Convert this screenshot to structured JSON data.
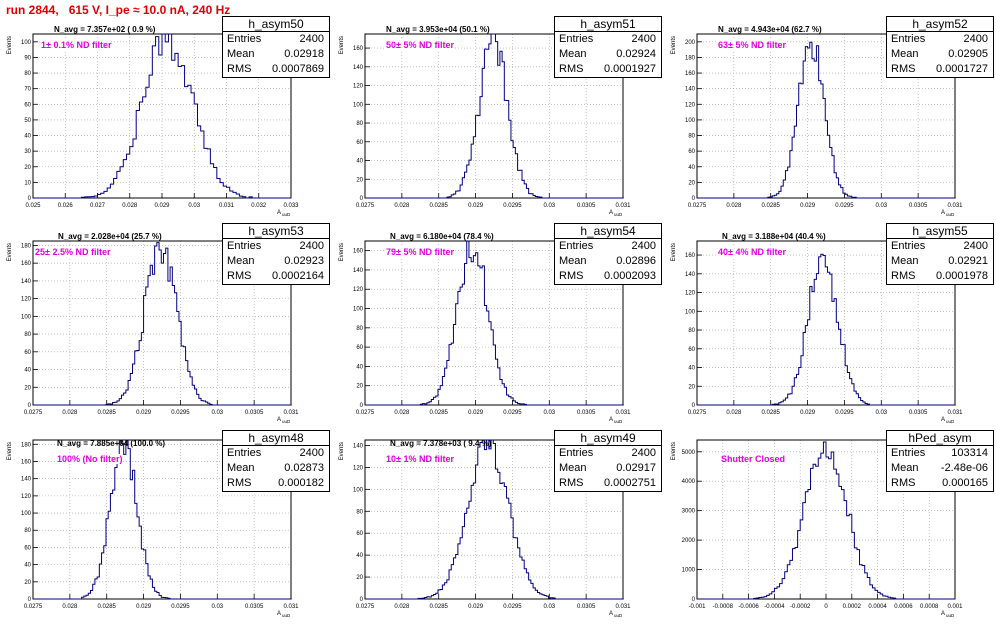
{
  "header": {
    "title": "run 2844,   615 V, I_pe ≈ 10.0 nA, 240 Hz"
  },
  "colors": {
    "title": "#e00000",
    "histogram": "#000080",
    "label": "#e000e0",
    "grid": "#a0a0a0",
    "axis": "#000000"
  },
  "panels": [
    {
      "name": "h_asym50",
      "entries": "2400",
      "mean": "0.02918",
      "rms": "0.0007869",
      "navg": "N_avg = 7.357e+02 ( 0.9 %)",
      "filter": "1± 0.1% ND filter"
    },
    {
      "name": "h_asym51",
      "entries": "2400",
      "mean": "0.02924",
      "rms": "0.0001927",
      "navg": "N_avg = 3.953e+04 (50.1 %)",
      "filter": "50± 5% ND filter"
    },
    {
      "name": "h_asym52",
      "entries": "2400",
      "mean": "0.02905",
      "rms": "0.0001727",
      "navg": "N_avg = 4.943e+04 (62.7 %)",
      "filter": "63± 5% ND filter"
    },
    {
      "name": "h_asym53",
      "entries": "2400",
      "mean": "0.02923",
      "rms": "0.0002164",
      "navg": "N_avg = 2.028e+04 (25.7 %)",
      "filter": "25± 2.5% ND filter"
    },
    {
      "name": "h_asym54",
      "entries": "2400",
      "mean": "0.02896",
      "rms": "0.0002093",
      "navg": "N_avg = 6.180e+04 (78.4 %)",
      "filter": "79± 5% ND filter"
    },
    {
      "name": "h_asym55",
      "entries": "2400",
      "mean": "0.02921",
      "rms": "0.0001978",
      "navg": "N_avg = 3.188e+04 (40.4 %)",
      "filter": "40± 4% ND filter"
    },
    {
      "name": "h_asym48",
      "entries": "2400",
      "mean": "0.02873",
      "rms": "0.000182",
      "navg": "N_avg = 7.885e+04 (100.0 %)",
      "filter": "100% (No filter)"
    },
    {
      "name": "h_asym49",
      "entries": "2400",
      "mean": "0.02917",
      "rms": "0.0002751",
      "navg": "N_avg = 7.378e+03 ( 9.4 %)",
      "filter": "10± 1% ND filter"
    },
    {
      "name": "hPed_asym",
      "entries": "103314",
      "mean": "-2.48e-06",
      "rms": "0.000165",
      "navg": "",
      "filter": "Shutter Closed"
    }
  ],
  "chart_data": [
    {
      "type": "histogram",
      "title": "h_asym50",
      "xlabel": "A_uuD",
      "ylabel": "Events",
      "xlim": [
        0.025,
        0.033
      ],
      "ylim": [
        0,
        105
      ],
      "xticks": [
        "0.025",
        "0.026",
        "0.027",
        "0.028",
        "0.029",
        "0.03",
        "0.031",
        "0.032",
        "0.033"
      ],
      "yticks": [
        "0",
        "10",
        "20",
        "30",
        "40",
        "50",
        "60",
        "70",
        "80",
        "90",
        "100"
      ],
      "entries": 2400,
      "mean": 0.02918,
      "rms": 0.0007869,
      "bin_width": 0.0001,
      "peak": 102
    },
    {
      "type": "histogram",
      "title": "h_asym51",
      "xlabel": "A_uuD",
      "ylabel": "Events",
      "xlim": [
        0.0275,
        0.031
      ],
      "ylim": [
        0,
        175
      ],
      "xticks": [
        "0.0275",
        "0.028",
        "0.0285",
        "0.029",
        "0.0295",
        "0.03",
        "0.0305",
        "0.031"
      ],
      "yticks": [
        "0",
        "20",
        "40",
        "60",
        "80",
        "100",
        "120",
        "140",
        "160"
      ],
      "entries": 2400,
      "mean": 0.02924,
      "rms": 0.0001927,
      "bin_width": 3e-05,
      "peak": 170
    },
    {
      "type": "histogram",
      "title": "h_asym52",
      "xlabel": "A_uuD",
      "ylabel": "Events",
      "xlim": [
        0.0275,
        0.031
      ],
      "ylim": [
        0,
        210
      ],
      "xticks": [
        "0.0275",
        "0.028",
        "0.0285",
        "0.029",
        "0.0295",
        "0.03",
        "0.0305",
        "0.031"
      ],
      "yticks": [
        "0",
        "20",
        "40",
        "60",
        "80",
        "100",
        "120",
        "140",
        "160",
        "180",
        "200"
      ],
      "entries": 2400,
      "mean": 0.02905,
      "rms": 0.0001727,
      "bin_width": 3e-05,
      "peak": 205
    },
    {
      "type": "histogram",
      "title": "h_asym53",
      "xlabel": "A_uuD",
      "ylabel": "Events",
      "xlim": [
        0.0275,
        0.031
      ],
      "ylim": [
        0,
        185
      ],
      "xticks": [
        "0.0275",
        "0.028",
        "0.0285",
        "0.029",
        "0.0295",
        "0.03",
        "0.0305",
        "0.031"
      ],
      "yticks": [
        "0",
        "20",
        "40",
        "60",
        "80",
        "100",
        "120",
        "140",
        "160",
        "180"
      ],
      "entries": 2400,
      "mean": 0.02923,
      "rms": 0.0002164,
      "bin_width": 3e-05,
      "peak": 180
    },
    {
      "type": "histogram",
      "title": "h_asym54",
      "xlabel": "A_uuD",
      "ylabel": "Events",
      "xlim": [
        0.0275,
        0.031
      ],
      "ylim": [
        0,
        170
      ],
      "xticks": [
        "0.0275",
        "0.028",
        "0.0285",
        "0.029",
        "0.0295",
        "0.03",
        "0.0305",
        "0.031"
      ],
      "yticks": [
        "0",
        "20",
        "40",
        "60",
        "80",
        "100",
        "120",
        "140",
        "160"
      ],
      "entries": 2400,
      "mean": 0.02896,
      "rms": 0.0002093,
      "bin_width": 3e-05,
      "peak": 165
    },
    {
      "type": "histogram",
      "title": "h_asym55",
      "xlabel": "A_uuD",
      "ylabel": "Events",
      "xlim": [
        0.0275,
        0.031
      ],
      "ylim": [
        0,
        175
      ],
      "xticks": [
        "0.0275",
        "0.028",
        "0.0285",
        "0.029",
        "0.0295",
        "0.03",
        "0.0305",
        "0.031"
      ],
      "yticks": [
        "0",
        "20",
        "40",
        "60",
        "80",
        "100",
        "120",
        "140",
        "160"
      ],
      "entries": 2400,
      "mean": 0.02921,
      "rms": 0.0001978,
      "bin_width": 3e-05,
      "peak": 160
    },
    {
      "type": "histogram",
      "title": "h_asym48",
      "xlabel": "A_uuD",
      "ylabel": "Events",
      "xlim": [
        0.0275,
        0.031
      ],
      "ylim": [
        0,
        185
      ],
      "xticks": [
        "0.0275",
        "0.028",
        "0.0285",
        "0.029",
        "0.0295",
        "0.03",
        "0.0305",
        "0.031"
      ],
      "yticks": [
        "0",
        "20",
        "40",
        "60",
        "80",
        "100",
        "120",
        "140",
        "160",
        "180"
      ],
      "entries": 2400,
      "mean": 0.02873,
      "rms": 0.000182,
      "bin_width": 3e-05,
      "peak": 180
    },
    {
      "type": "histogram",
      "title": "h_asym49",
      "xlabel": "A_uuD",
      "ylabel": "Events",
      "xlim": [
        0.0275,
        0.031
      ],
      "ylim": [
        0,
        145
      ],
      "xticks": [
        "0.0275",
        "0.028",
        "0.0285",
        "0.029",
        "0.0295",
        "0.03",
        "0.0305",
        "0.031"
      ],
      "yticks": [
        "0",
        "20",
        "40",
        "60",
        "80",
        "100",
        "120",
        "140"
      ],
      "entries": 2400,
      "mean": 0.02917,
      "rms": 0.0002751,
      "bin_width": 3e-05,
      "peak": 140
    },
    {
      "type": "histogram",
      "title": "hPed_asym",
      "xlabel": "A_uuD",
      "ylabel": "Events",
      "xlim": [
        -0.001,
        0.001
      ],
      "ylim": [
        0,
        5400
      ],
      "xticks": [
        "-0.001",
        "-0.0008",
        "-0.0006",
        "-0.0004",
        "-0.0002",
        "0",
        "0.0002",
        "0.0004",
        "0.0006",
        "0.0008",
        "0.001"
      ],
      "yticks": [
        "0",
        "1000",
        "2000",
        "3000",
        "4000",
        "5000"
      ],
      "entries": 103314,
      "mean": -2.48e-06,
      "rms": 0.000165,
      "bin_width": 2e-05,
      "peak": 5100
    }
  ]
}
